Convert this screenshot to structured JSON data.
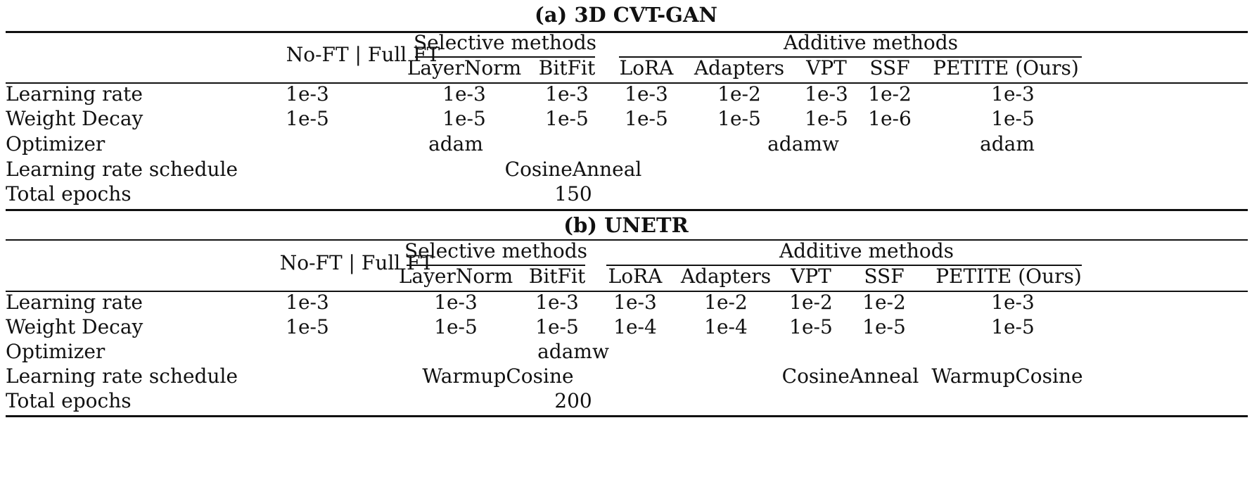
{
  "tables": [
    {
      "title": "(a) 3D CVT-GAN",
      "header": {
        "no_ft": "No-FT | Full FT",
        "selective": "Selective methods",
        "additive": "Additive methods",
        "methods": [
          "LayerNorm",
          "BitFit",
          "LoRA",
          "Adapters",
          "VPT",
          "SSF",
          "PETITE (Ours)"
        ]
      },
      "rows": [
        {
          "label": "Learning rate",
          "values": [
            "1e-3",
            "1e-3",
            "1e-3",
            "1e-3",
            "1e-2",
            "1e-3",
            "1e-2",
            "1e-3"
          ]
        },
        {
          "label": "Weight Decay",
          "values": [
            "1e-5",
            "1e-5",
            "1e-5",
            "1e-5",
            "1e-5",
            "1e-5",
            "1e-6",
            "1e-5"
          ]
        }
      ],
      "optimizer": {
        "label": "Optimizer",
        "values": [
          "adam",
          "adamw",
          "adam"
        ]
      },
      "schedule": {
        "label": "Learning rate schedule",
        "values": [
          "CosineAnneal"
        ]
      },
      "epochs": {
        "label": "Total epochs",
        "value": "150"
      }
    },
    {
      "title": "(b) UNETR",
      "header": {
        "no_ft": "No-FT | Full FT",
        "selective": "Selective methods",
        "additive": "Additive methods",
        "methods": [
          "LayerNorm",
          "BitFit",
          "LoRA",
          "Adapters",
          "VPT",
          "SSF",
          "PETITE (Ours)"
        ]
      },
      "rows": [
        {
          "label": "Learning rate",
          "values": [
            "1e-3",
            "1e-3",
            "1e-3",
            "1e-3",
            "1e-2",
            "1e-2",
            "1e-2",
            "1e-3"
          ]
        },
        {
          "label": "Weight Decay",
          "values": [
            "1e-5",
            "1e-5",
            "1e-5",
            "1e-4",
            "1e-4",
            "1e-5",
            "1e-5",
            "1e-5"
          ]
        }
      ],
      "optimizer": {
        "label": "Optimizer",
        "values": [
          "adamw"
        ]
      },
      "schedule": {
        "label": "Learning rate schedule",
        "values": [
          "WarmupCosine",
          "CosineAnneal",
          "WarmupCosine"
        ]
      },
      "epochs": {
        "label": "Total epochs",
        "value": "200"
      }
    }
  ]
}
